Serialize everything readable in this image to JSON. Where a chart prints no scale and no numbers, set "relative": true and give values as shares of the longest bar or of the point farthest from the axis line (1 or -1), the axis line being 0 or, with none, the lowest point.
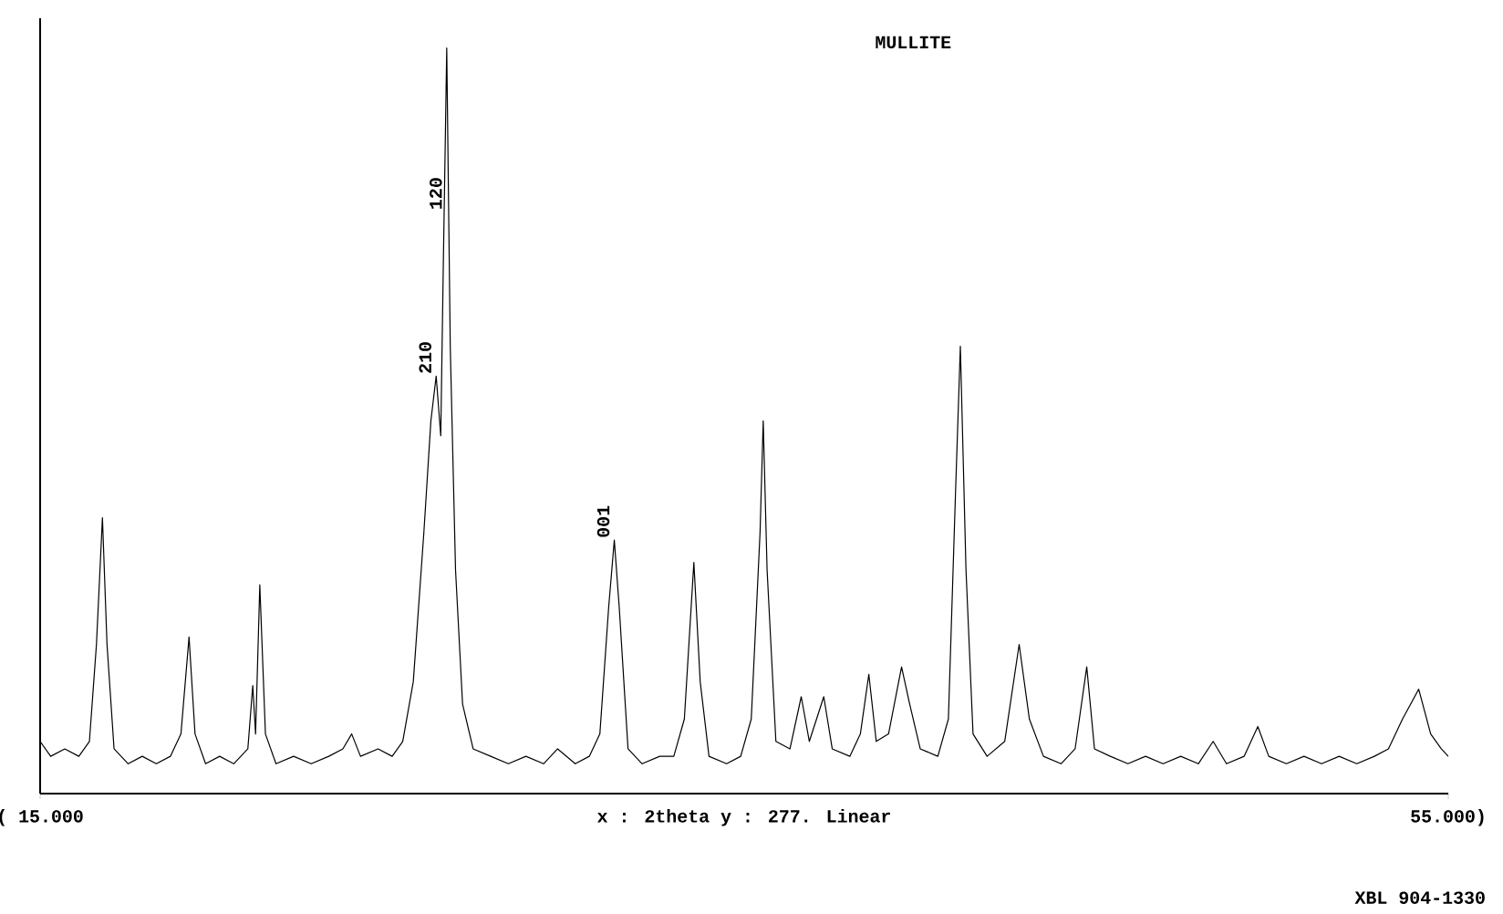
{
  "chart_data": {
    "type": "line",
    "title": "MULLITE",
    "xlabel": "x : 2theta y :   277. Linear",
    "relative": true,
    "color": "#000000",
    "tick_labels": "x",
    "xlim": [
      15,
      55
    ],
    "xticks": [
      {
        "value": 15,
        "label": "( 15.000"
      },
      {
        "value": 55,
        "label": "55.000)"
      }
    ],
    "x": [
      15.0,
      15.3,
      15.7,
      16.1,
      16.4,
      16.6,
      16.77,
      16.9,
      17.1,
      17.5,
      17.9,
      18.3,
      18.7,
      19.0,
      19.23,
      19.4,
      19.7,
      20.1,
      20.5,
      20.9,
      21.04,
      21.12,
      21.24,
      21.4,
      21.7,
      22.2,
      22.7,
      23.2,
      23.6,
      23.85,
      24.1,
      24.6,
      25.0,
      25.3,
      25.6,
      25.9,
      26.1,
      26.25,
      26.38,
      26.45,
      26.55,
      26.65,
      26.8,
      27.0,
      27.3,
      27.8,
      28.3,
      28.8,
      29.3,
      29.7,
      30.2,
      30.6,
      30.9,
      31.15,
      31.31,
      31.45,
      31.7,
      32.1,
      32.6,
      33.0,
      33.3,
      33.57,
      33.75,
      34.0,
      34.5,
      34.9,
      35.2,
      35.45,
      35.54,
      35.65,
      35.9,
      36.3,
      36.62,
      36.85,
      37.26,
      37.5,
      38.0,
      38.3,
      38.54,
      38.75,
      39.1,
      39.47,
      39.7,
      40.0,
      40.5,
      40.8,
      41.0,
      41.14,
      41.3,
      41.5,
      41.9,
      42.4,
      42.81,
      43.1,
      43.5,
      44.0,
      44.4,
      44.73,
      44.95,
      45.4,
      45.9,
      46.4,
      46.9,
      47.4,
      47.9,
      48.32,
      48.7,
      49.2,
      49.59,
      49.9,
      50.4,
      50.9,
      51.4,
      51.9,
      52.4,
      52.9,
      53.3,
      53.7,
      54.16,
      54.5,
      54.8,
      55.0
    ],
    "values": [
      0.07,
      0.05,
      0.06,
      0.05,
      0.07,
      0.2,
      0.37,
      0.2,
      0.06,
      0.04,
      0.05,
      0.04,
      0.05,
      0.08,
      0.21,
      0.08,
      0.04,
      0.05,
      0.04,
      0.06,
      0.145,
      0.08,
      0.28,
      0.08,
      0.04,
      0.05,
      0.04,
      0.05,
      0.06,
      0.08,
      0.05,
      0.06,
      0.05,
      0.07,
      0.15,
      0.35,
      0.5,
      0.56,
      0.48,
      0.7,
      1.0,
      0.6,
      0.3,
      0.12,
      0.06,
      0.05,
      0.04,
      0.05,
      0.04,
      0.06,
      0.04,
      0.05,
      0.08,
      0.25,
      0.34,
      0.25,
      0.06,
      0.04,
      0.05,
      0.05,
      0.1,
      0.31,
      0.15,
      0.05,
      0.04,
      0.05,
      0.1,
      0.35,
      0.5,
      0.3,
      0.07,
      0.06,
      0.13,
      0.07,
      0.13,
      0.06,
      0.05,
      0.08,
      0.16,
      0.07,
      0.08,
      0.17,
      0.12,
      0.06,
      0.05,
      0.1,
      0.4,
      0.6,
      0.3,
      0.08,
      0.05,
      0.07,
      0.2,
      0.1,
      0.05,
      0.04,
      0.06,
      0.17,
      0.06,
      0.05,
      0.04,
      0.05,
      0.04,
      0.05,
      0.04,
      0.07,
      0.04,
      0.05,
      0.09,
      0.05,
      0.04,
      0.05,
      0.04,
      0.05,
      0.04,
      0.05,
      0.06,
      0.1,
      0.14,
      0.08,
      0.06,
      0.05
    ],
    "annotations": [
      {
        "text": "210",
        "x": 26.25,
        "y": 0.56
      },
      {
        "text": "120",
        "x": 26.55,
        "y": 0.78
      },
      {
        "text": "001",
        "x": 31.31,
        "y": 0.34
      },
      "XBL 904-1330"
    ]
  }
}
